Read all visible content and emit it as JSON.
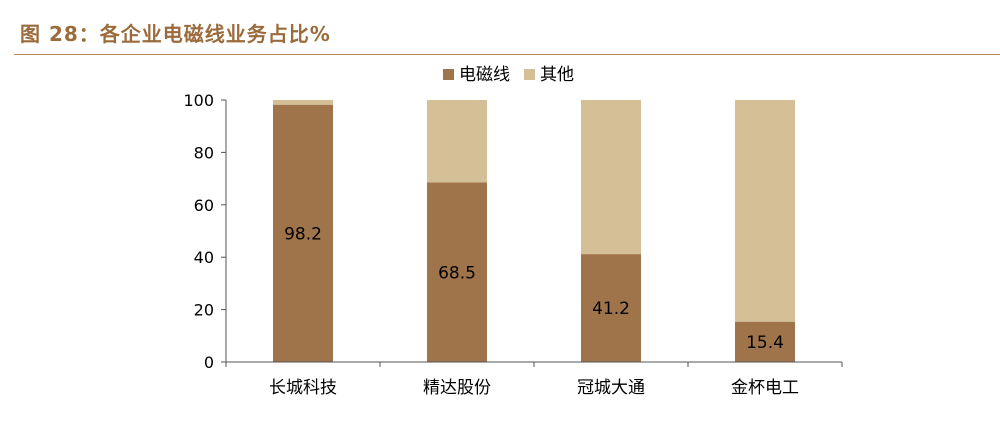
{
  "figure": {
    "title": "图 28：各企业电磁线业务占比%"
  },
  "chart_data": {
    "type": "bar",
    "stacked": true,
    "categories": [
      "长城科技",
      "精达股份",
      "冠城大通",
      "金杯电工"
    ],
    "series": [
      {
        "name": "电磁线",
        "values": [
          98.2,
          68.5,
          41.2,
          15.4
        ],
        "color": "#a0744a"
      },
      {
        "name": "其他",
        "values": [
          1.8,
          31.5,
          58.8,
          84.6
        ],
        "color": "#d4bf96"
      }
    ],
    "data_labels": [
      "98.2",
      "68.5",
      "41.2",
      "15.4"
    ],
    "ylim": [
      0,
      100
    ],
    "yticks": [
      0,
      20,
      40,
      60,
      80,
      100
    ],
    "grid": false,
    "legend_position": "top-center"
  }
}
